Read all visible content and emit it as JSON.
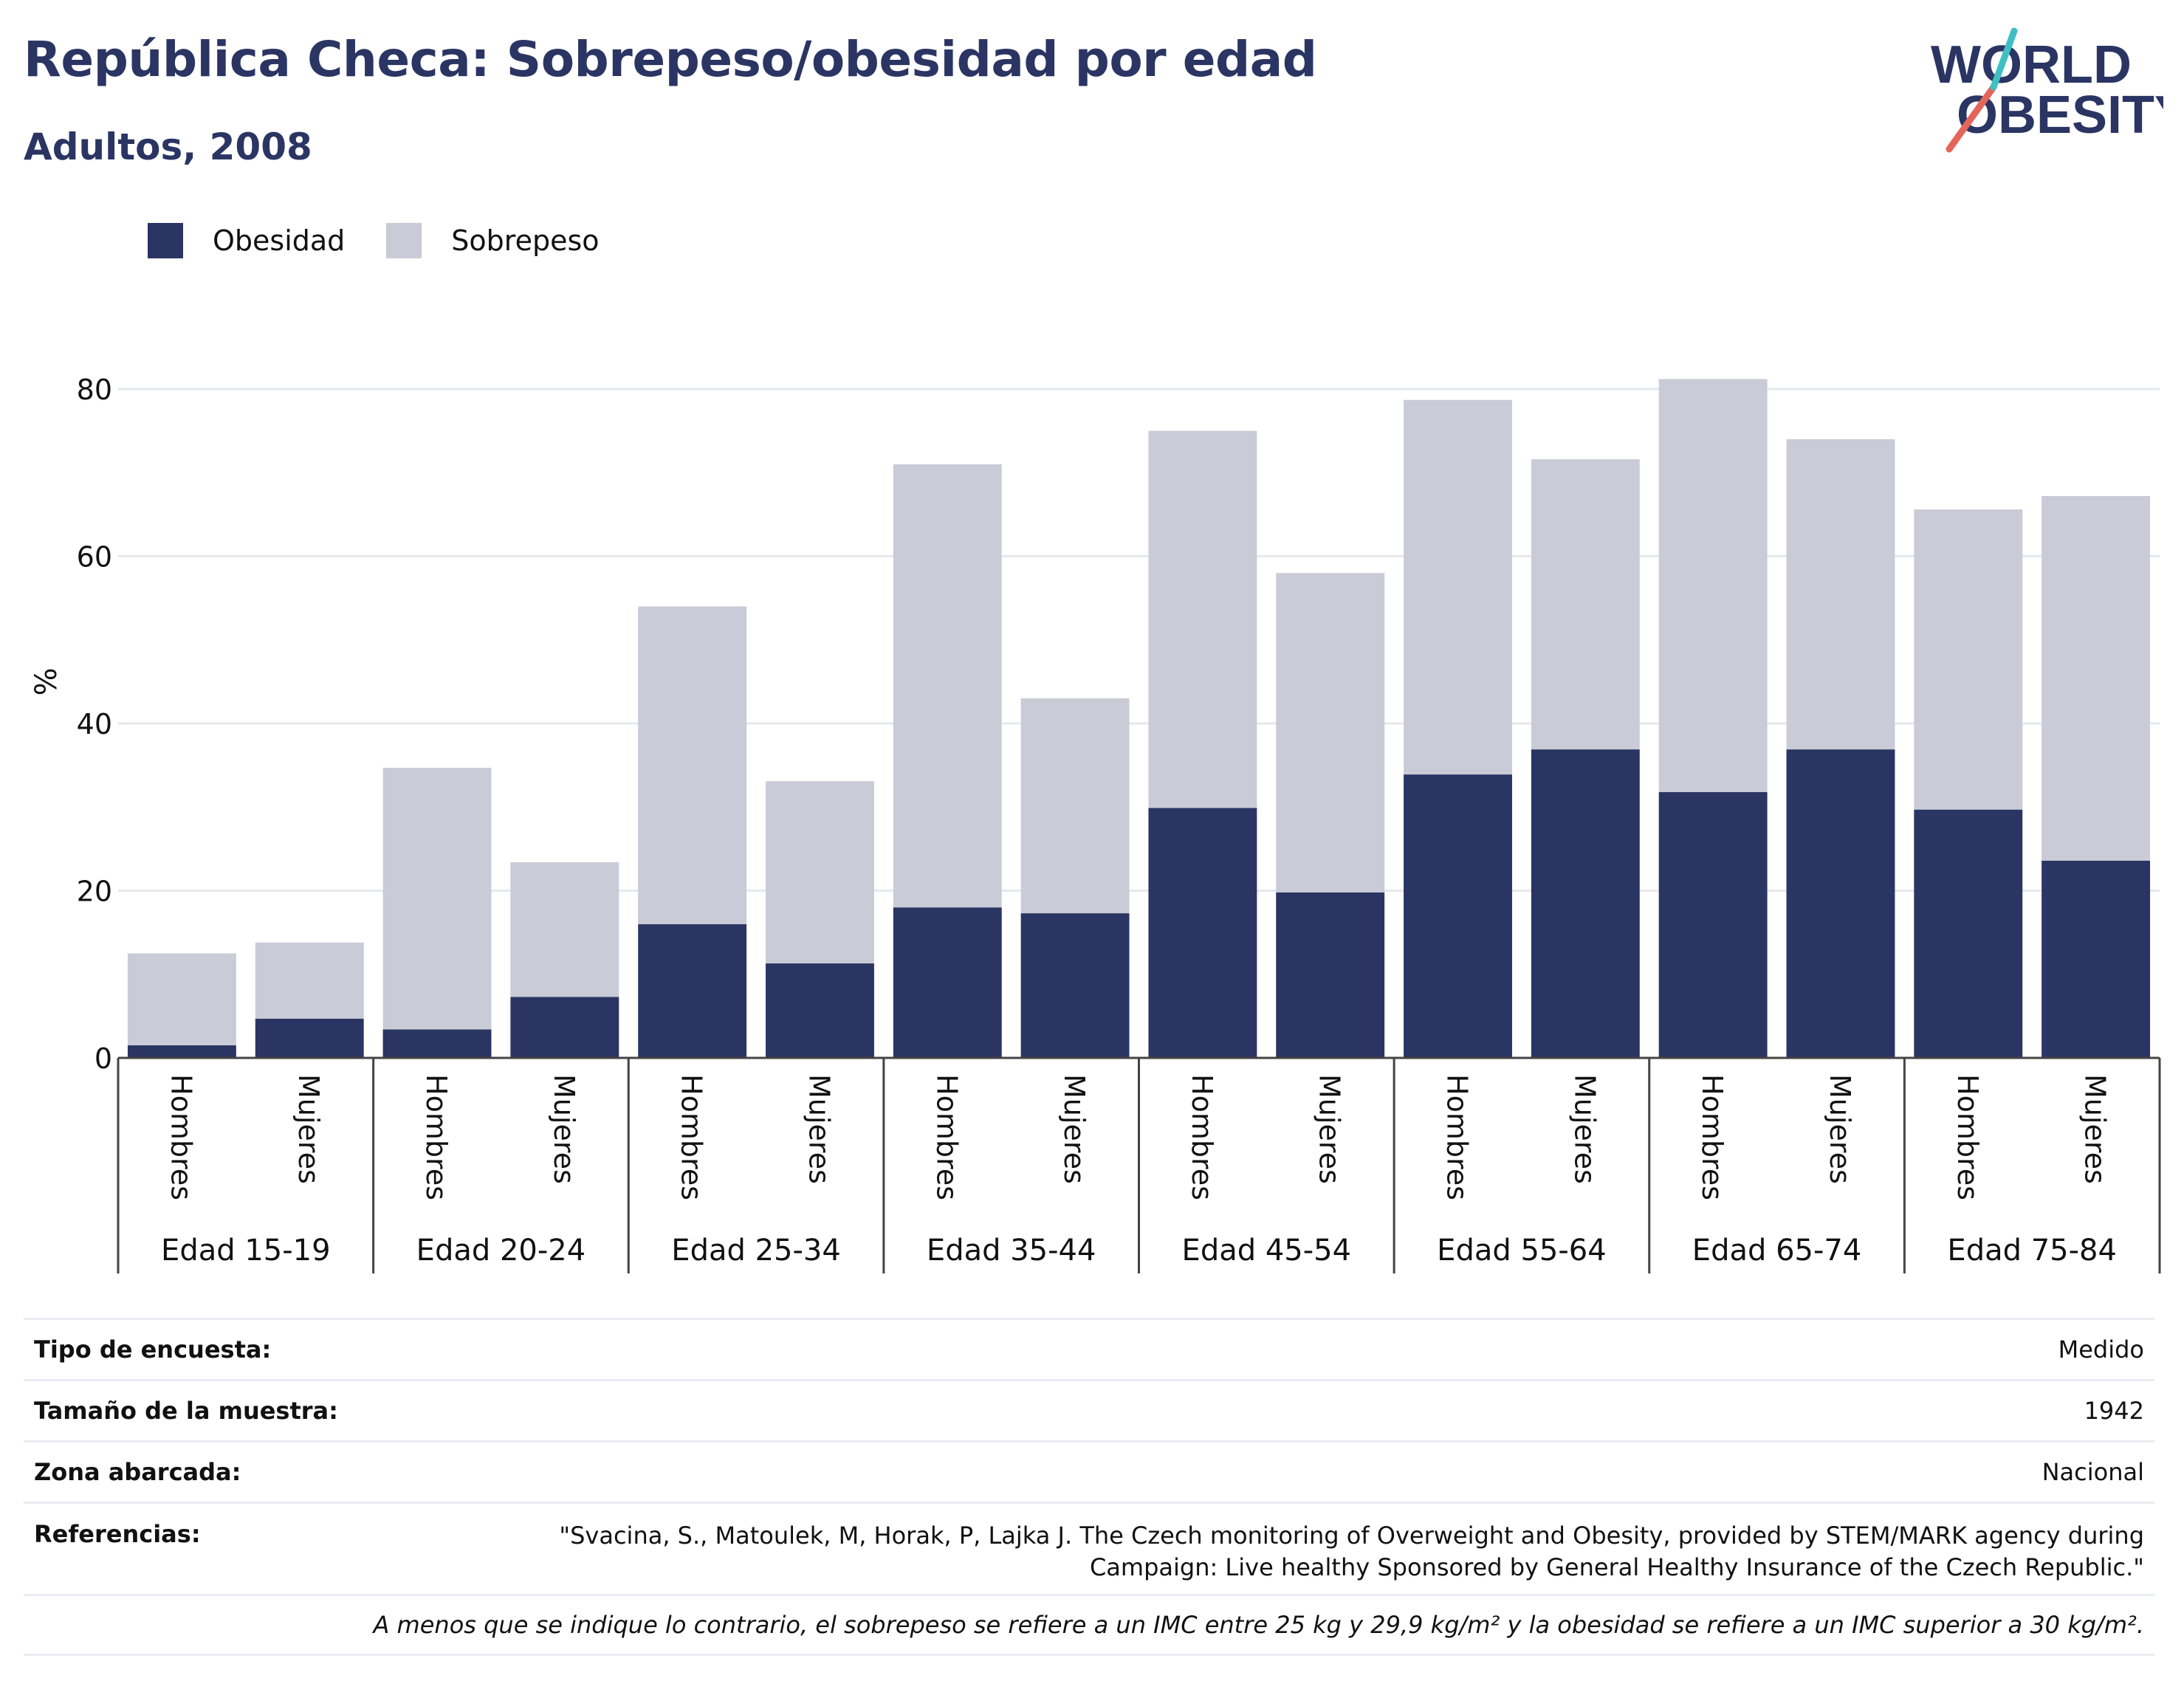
{
  "header": {
    "title": "República Checa: Sobrepeso/obesidad por edad",
    "subtitle": "Adultos, 2008"
  },
  "logo": {
    "line1": "WORLD",
    "line2": "OBESITY",
    "accent_colors": [
      "#e4665a",
      "#3fbfc4"
    ]
  },
  "legend": {
    "items": [
      {
        "label": "Obesidad",
        "color": "#2b3563"
      },
      {
        "label": "Sobrepeso",
        "color": "#c9cbd7"
      }
    ]
  },
  "chart_data": {
    "type": "bar",
    "stacked": true,
    "ylabel": "%",
    "ylim": [
      0,
      90
    ],
    "yticks": [
      0,
      20,
      40,
      60,
      80
    ],
    "grid": true,
    "legend_position": "top-left",
    "group_labels": [
      "Edad 15-19",
      "Edad 20-24",
      "Edad 25-34",
      "Edad 35-44",
      "Edad 45-54",
      "Edad 55-64",
      "Edad 65-74",
      "Edad 75-84"
    ],
    "sub_labels": [
      "Hombres",
      "Mujeres"
    ],
    "categories": [
      "Edad 15-19 Hombres",
      "Edad 15-19 Mujeres",
      "Edad 20-24 Hombres",
      "Edad 20-24 Mujeres",
      "Edad 25-34 Hombres",
      "Edad 25-34 Mujeres",
      "Edad 35-44 Hombres",
      "Edad 35-44 Mujeres",
      "Edad 45-54 Hombres",
      "Edad 45-54 Mujeres",
      "Edad 55-64 Hombres",
      "Edad 55-64 Mujeres",
      "Edad 65-74 Hombres",
      "Edad 65-74 Mujeres",
      "Edad 75-84 Hombres",
      "Edad 75-84 Mujeres"
    ],
    "series": [
      {
        "name": "Obesidad",
        "color": "#2b3563",
        "values": [
          1.5,
          4.7,
          3.4,
          7.3,
          16.0,
          11.3,
          18.0,
          17.3,
          29.9,
          19.8,
          33.9,
          36.9,
          31.8,
          36.9,
          29.7,
          23.6
        ]
      },
      {
        "name": "Sobrepeso",
        "color": "#c9cbd7",
        "values": [
          11.0,
          9.1,
          31.3,
          16.1,
          38.0,
          21.8,
          53.0,
          25.7,
          45.1,
          38.2,
          44.8,
          34.7,
          49.4,
          37.1,
          35.9,
          43.6
        ]
      }
    ]
  },
  "info": {
    "rows": [
      {
        "label": "Tipo de encuesta:",
        "value": "Medido"
      },
      {
        "label": "Tamaño de la muestra:",
        "value": "1942"
      },
      {
        "label": "Zona abarcada:",
        "value": "Nacional"
      },
      {
        "label": "Referencias:",
        "value": "\"Svacina, S., Matoulek, M, Horak, P, Lajka J. The Czech monitoring of Overweight and Obesity, provided by STEM/MARK agency during Campaign: Live healthy Sponsored by General Healthy Insurance of the Czech Republic.\""
      }
    ],
    "note": "A menos que se indique lo contrario, el sobrepeso se refiere a un IMC entre 25 kg y 29,9 kg/m² y la obesidad se refiere a un IMC superior a 30 kg/m²."
  }
}
